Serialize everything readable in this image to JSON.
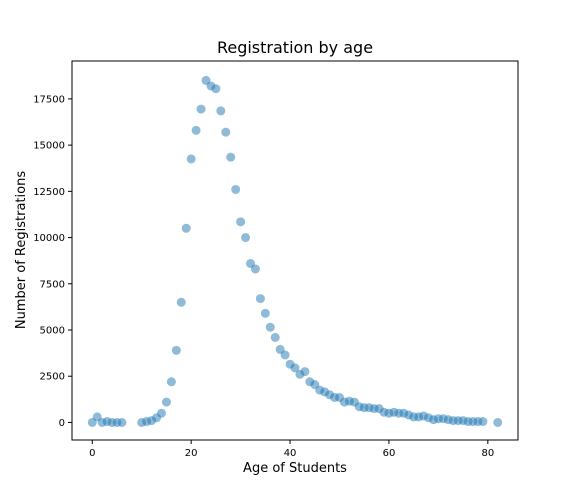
{
  "chart_data": {
    "type": "scatter",
    "title": "Registration by age",
    "xlabel": "Age of Students",
    "ylabel": "Number of Registrations",
    "xlim": [
      -4.1,
      86.1
    ],
    "ylim": [
      -950,
      19550
    ],
    "xticks": [
      0,
      20,
      40,
      60,
      80
    ],
    "yticks": [
      0,
      2500,
      5000,
      7500,
      10000,
      12500,
      15000,
      17500
    ],
    "grid": false,
    "marker_color": "#1f77b4",
    "marker_alpha": 0.5,
    "x": [
      0,
      1,
      2,
      3,
      4,
      5,
      6,
      10,
      11,
      12,
      13,
      14,
      15,
      16,
      17,
      18,
      19,
      20,
      21,
      22,
      23,
      24,
      25,
      26,
      27,
      28,
      29,
      30,
      31,
      32,
      33,
      34,
      35,
      36,
      37,
      38,
      39,
      40,
      41,
      42,
      43,
      44,
      45,
      46,
      47,
      48,
      49,
      50,
      51,
      52,
      53,
      54,
      55,
      56,
      57,
      58,
      59,
      60,
      61,
      62,
      63,
      64,
      65,
      66,
      67,
      68,
      69,
      70,
      71,
      72,
      73,
      74,
      75,
      76,
      77,
      78,
      79,
      82
    ],
    "y": [
      0,
      300,
      0,
      50,
      0,
      0,
      0,
      0,
      50,
      100,
      250,
      500,
      1100,
      2200,
      3900,
      6500,
      10500,
      14250,
      15800,
      16950,
      18500,
      18200,
      18050,
      16850,
      15700,
      14350,
      12600,
      10850,
      10000,
      8600,
      8300,
      6700,
      5900,
      5150,
      4600,
      3950,
      3650,
      3150,
      2950,
      2600,
      2750,
      2200,
      2050,
      1750,
      1650,
      1500,
      1350,
      1350,
      1100,
      1150,
      1100,
      850,
      800,
      800,
      750,
      750,
      550,
      500,
      550,
      500,
      500,
      400,
      300,
      300,
      350,
      250,
      150,
      200,
      200,
      150,
      100,
      100,
      100,
      50,
      50,
      50,
      50,
      0
    ]
  }
}
